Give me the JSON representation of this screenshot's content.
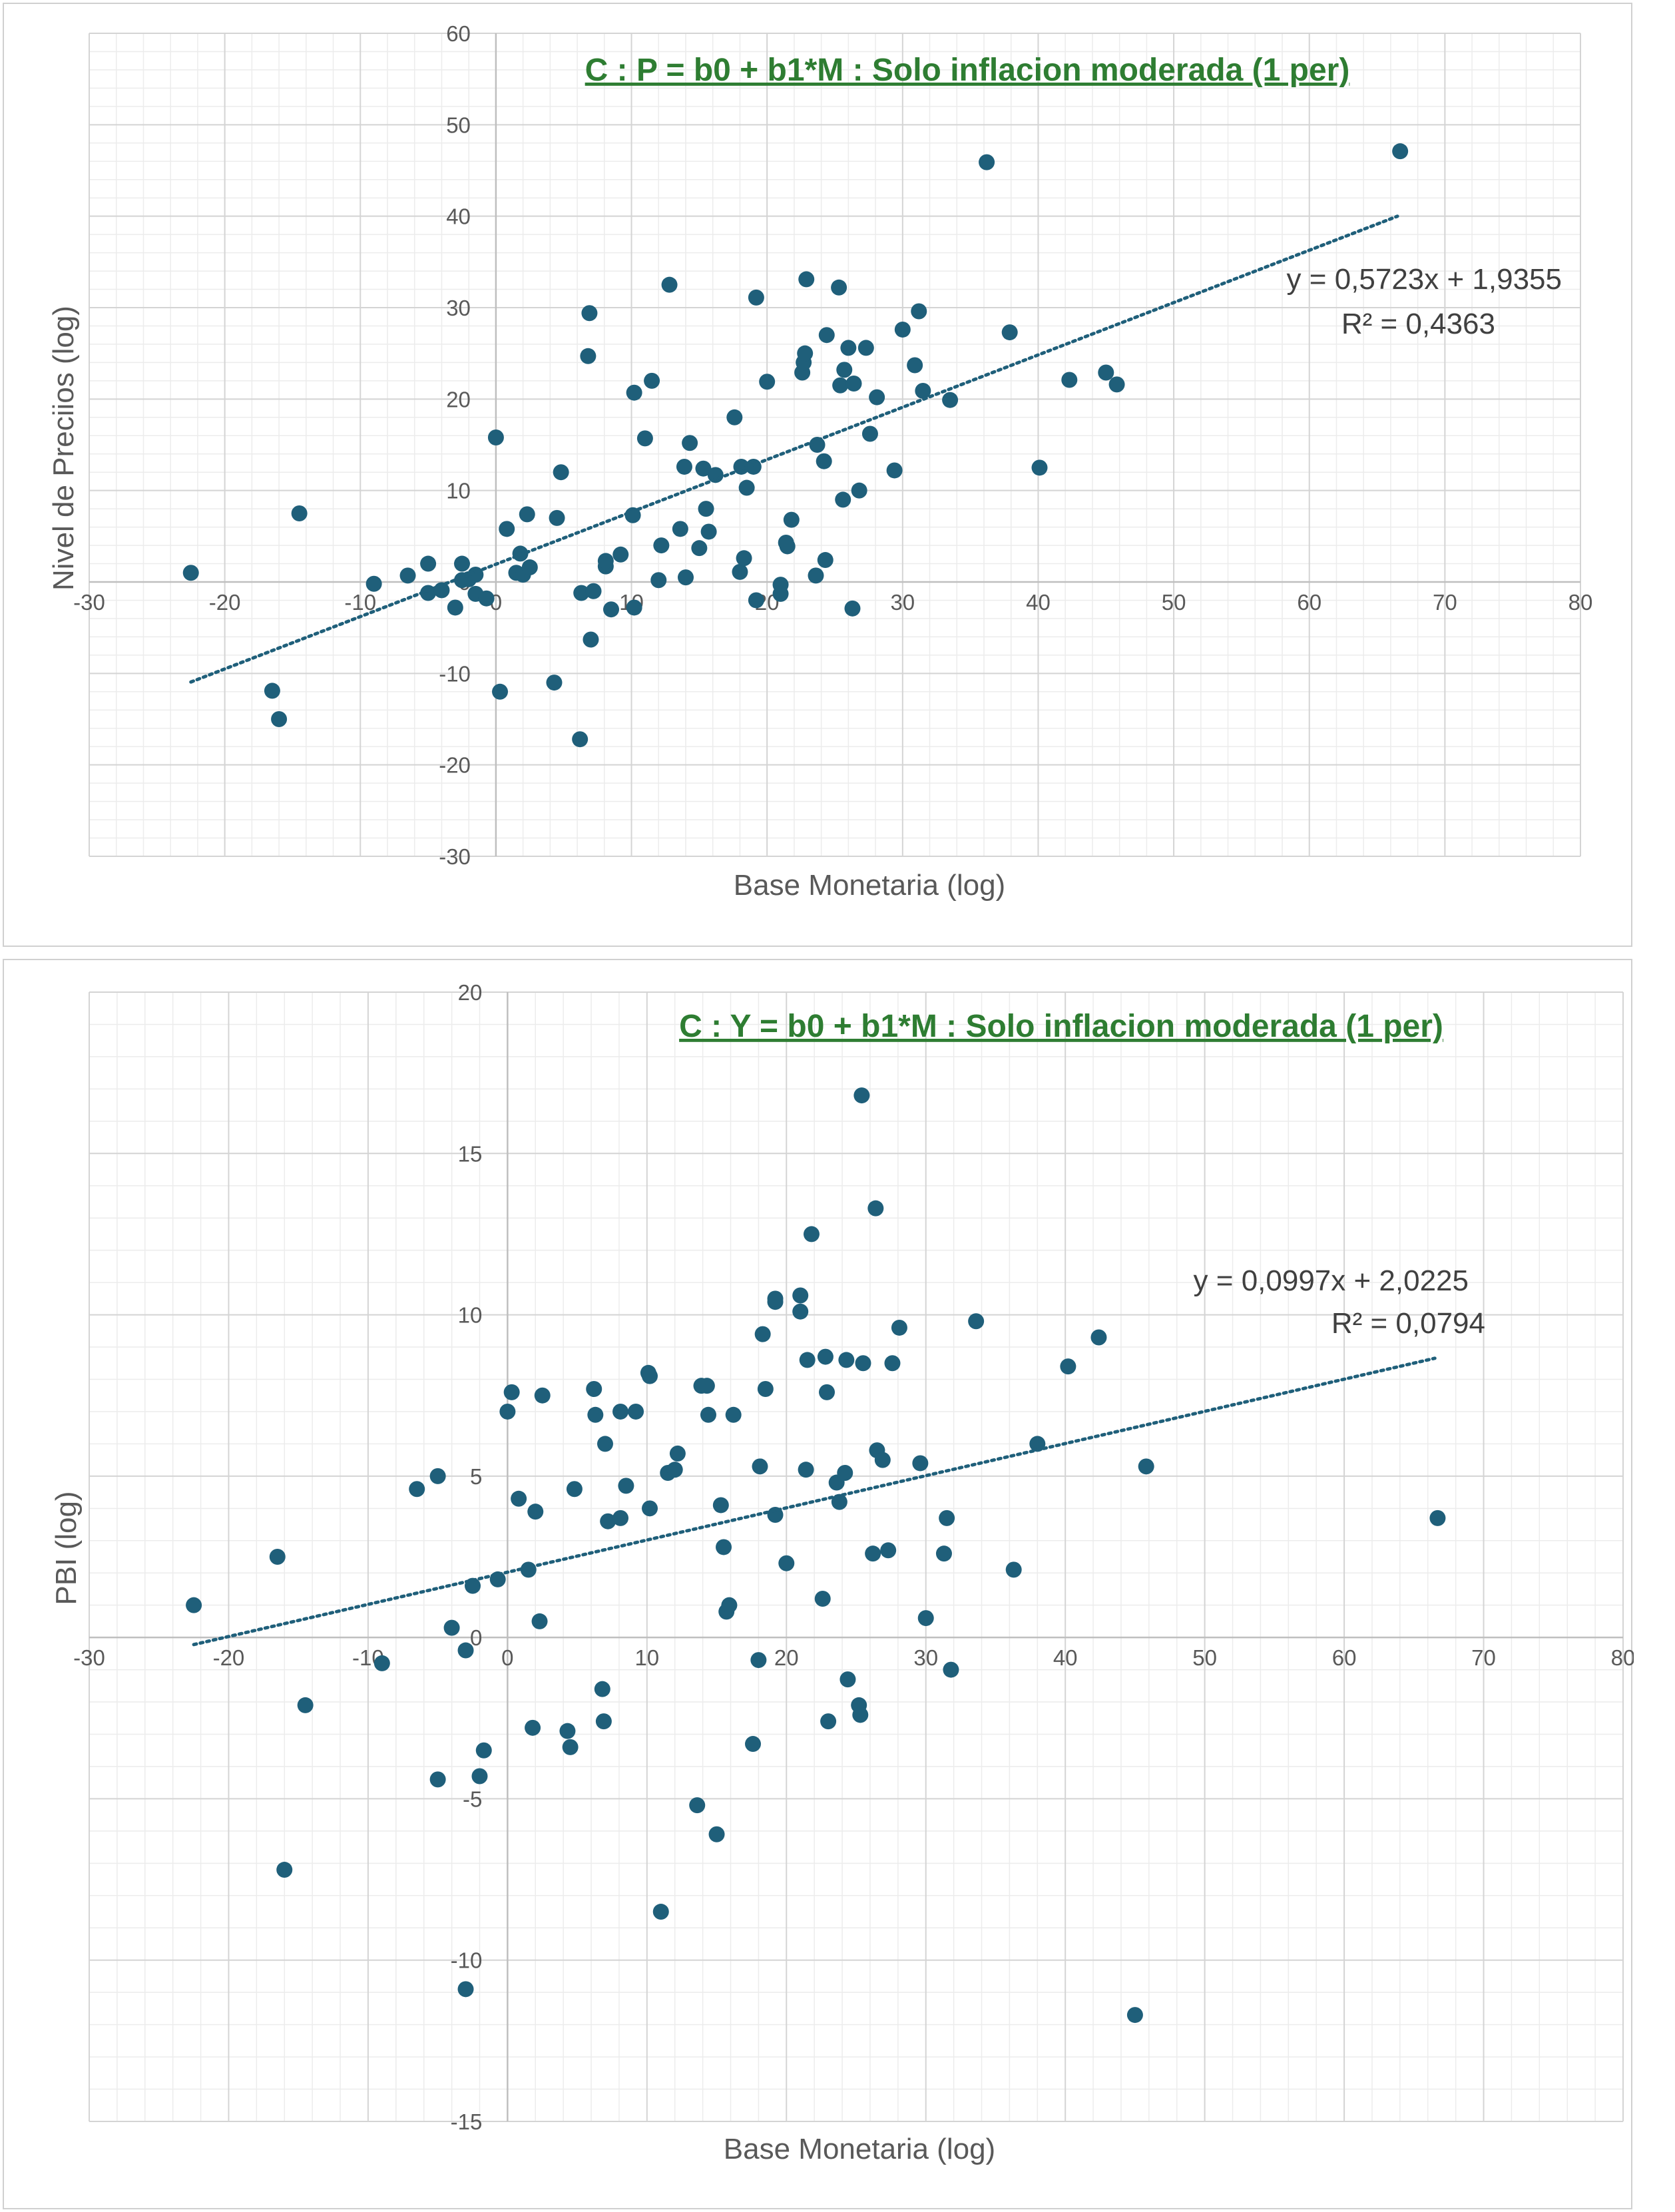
{
  "chart_data": [
    {
      "type": "scatter",
      "title": "C : P = b0 + b1*M : Solo inflacion moderada (1 per)",
      "xlabel": "Base Monetaria (log)",
      "ylabel": "Nivel de Preciios (log)",
      "xlim": [
        -30,
        80
      ],
      "ylim": [
        -30,
        60
      ],
      "xticks": [
        -30,
        -20,
        -10,
        0,
        10,
        20,
        30,
        40,
        50,
        60,
        70,
        80
      ],
      "yticks": [
        -30,
        -20,
        -10,
        0,
        10,
        20,
        30,
        40,
        50,
        60
      ],
      "grid": true,
      "trendline": {
        "type": "linear",
        "slope": 0.5723,
        "intercept": 1.9355,
        "x_range": [
          -22.5,
          66.5
        ]
      },
      "equation": "y = 0,5723x + 1,9355",
      "r2_label": "R² = 0,4363",
      "marker_color": "#1f5f7a",
      "trend_color": "#1f5f7a",
      "title_color": "#2e7d32",
      "points": [
        [
          -22.5,
          1.0
        ],
        [
          -16.5,
          -11.9
        ],
        [
          -16.0,
          -15.0
        ],
        [
          -14.5,
          7.5
        ],
        [
          -9.0,
          -0.2
        ],
        [
          -6.5,
          0.7
        ],
        [
          -5.0,
          2.0
        ],
        [
          -5.0,
          -1.2
        ],
        [
          -4.0,
          -0.9
        ],
        [
          -3.0,
          -2.8
        ],
        [
          -2.5,
          0.2
        ],
        [
          -2.5,
          2.0
        ],
        [
          -2.0,
          0.3
        ],
        [
          -1.5,
          0.8
        ],
        [
          -1.5,
          -1.3
        ],
        [
          -0.7,
          -1.8
        ],
        [
          0.0,
          15.8
        ],
        [
          0.3,
          -12.0
        ],
        [
          0.8,
          5.8
        ],
        [
          1.5,
          1.0
        ],
        [
          1.8,
          3.1
        ],
        [
          2.0,
          0.8
        ],
        [
          2.3,
          7.4
        ],
        [
          2.5,
          1.6
        ],
        [
          4.3,
          -11.0
        ],
        [
          4.5,
          7.0
        ],
        [
          4.8,
          12.0
        ],
        [
          6.2,
          -17.2
        ],
        [
          6.3,
          -1.2
        ],
        [
          6.8,
          24.7
        ],
        [
          6.9,
          29.4
        ],
        [
          7.0,
          -6.3
        ],
        [
          7.2,
          -1.0
        ],
        [
          8.1,
          1.7
        ],
        [
          8.1,
          2.3
        ],
        [
          8.5,
          -3.0
        ],
        [
          9.2,
          3.0
        ],
        [
          10.1,
          7.3
        ],
        [
          10.2,
          20.7
        ],
        [
          10.2,
          -2.8
        ],
        [
          11.0,
          15.7
        ],
        [
          11.5,
          22.0
        ],
        [
          12.0,
          0.2
        ],
        [
          12.2,
          4.0
        ],
        [
          12.8,
          32.5
        ],
        [
          13.6,
          5.8
        ],
        [
          13.9,
          12.6
        ],
        [
          14.0,
          0.5
        ],
        [
          14.3,
          15.2
        ],
        [
          15.0,
          3.7
        ],
        [
          15.3,
          12.4
        ],
        [
          15.5,
          8.0
        ],
        [
          15.7,
          5.5
        ],
        [
          16.2,
          11.7
        ],
        [
          17.6,
          18.0
        ],
        [
          18.0,
          1.1
        ],
        [
          18.1,
          12.6
        ],
        [
          18.3,
          2.6
        ],
        [
          18.5,
          10.3
        ],
        [
          19.0,
          12.6
        ],
        [
          19.2,
          -2.0
        ],
        [
          19.2,
          31.1
        ],
        [
          20.0,
          21.9
        ],
        [
          21.0,
          -0.3
        ],
        [
          21.0,
          -1.3
        ],
        [
          21.4,
          4.3
        ],
        [
          21.5,
          3.9
        ],
        [
          21.8,
          6.8
        ],
        [
          22.6,
          22.9
        ],
        [
          22.7,
          24.0
        ],
        [
          22.8,
          25.0
        ],
        [
          22.9,
          33.1
        ],
        [
          23.6,
          0.7
        ],
        [
          23.7,
          15.0
        ],
        [
          24.2,
          13.2
        ],
        [
          24.3,
          2.4
        ],
        [
          24.4,
          27.0
        ],
        [
          25.3,
          32.2
        ],
        [
          25.4,
          21.5
        ],
        [
          25.6,
          9.0
        ],
        [
          25.7,
          23.2
        ],
        [
          26.0,
          25.6
        ],
        [
          26.3,
          -2.9
        ],
        [
          26.4,
          21.7
        ],
        [
          26.8,
          10.0
        ],
        [
          27.3,
          25.6
        ],
        [
          27.6,
          16.2
        ],
        [
          28.1,
          20.2
        ],
        [
          29.4,
          12.2
        ],
        [
          30.0,
          27.6
        ],
        [
          30.9,
          23.7
        ],
        [
          31.2,
          29.6
        ],
        [
          31.5,
          20.9
        ],
        [
          33.5,
          19.9
        ],
        [
          36.2,
          45.9
        ],
        [
          37.9,
          27.3
        ],
        [
          40.1,
          12.5
        ],
        [
          42.3,
          22.1
        ],
        [
          45.0,
          22.9
        ],
        [
          45.8,
          21.6
        ],
        [
          66.7,
          47.1
        ]
      ]
    },
    {
      "type": "scatter",
      "title": "C : Y = b0 + b1*M : Solo inflacion moderada (1 per)",
      "xlabel": "Base Monetaria (log)",
      "ylabel": "PBI  (log)",
      "xlim": [
        -30,
        80
      ],
      "ylim": [
        -15,
        20
      ],
      "xticks": [
        -30,
        -20,
        -10,
        0,
        10,
        20,
        30,
        40,
        50,
        60,
        70,
        80
      ],
      "yticks": [
        -15,
        -10,
        -5,
        0,
        5,
        10,
        15,
        20
      ],
      "grid": true,
      "trendline": {
        "type": "linear",
        "slope": 0.0997,
        "intercept": 2.0225,
        "x_range": [
          -22.5,
          66.5
        ]
      },
      "equation": "y = 0,0997x + 2,0225",
      "r2_label": "R² = 0,0794",
      "marker_color": "#1f5f7a",
      "trend_color": "#1f5f7a",
      "title_color": "#2e7d32",
      "points": [
        [
          -22.5,
          1.0
        ],
        [
          -16.5,
          2.5
        ],
        [
          -16.0,
          -7.2
        ],
        [
          -14.5,
          -2.1
        ],
        [
          -9.0,
          -0.8
        ],
        [
          -6.5,
          4.6
        ],
        [
          -5.0,
          5.0
        ],
        [
          -5.0,
          -4.4
        ],
        [
          -4.0,
          0.3
        ],
        [
          -3.0,
          -0.4
        ],
        [
          -3.0,
          -10.9
        ],
        [
          -2.5,
          1.6
        ],
        [
          -2.0,
          -4.3
        ],
        [
          -1.7,
          -3.5
        ],
        [
          -0.7,
          1.8
        ],
        [
          0.0,
          7.0
        ],
        [
          0.3,
          7.6
        ],
        [
          0.8,
          4.3
        ],
        [
          1.5,
          2.1
        ],
        [
          1.8,
          -2.8
        ],
        [
          2.0,
          3.9
        ],
        [
          2.3,
          0.5
        ],
        [
          2.5,
          7.5
        ],
        [
          4.3,
          -2.9
        ],
        [
          4.5,
          -3.4
        ],
        [
          4.8,
          4.6
        ],
        [
          6.2,
          7.7
        ],
        [
          6.3,
          6.9
        ],
        [
          6.8,
          -1.6
        ],
        [
          6.9,
          -2.6
        ],
        [
          7.0,
          6.0
        ],
        [
          7.2,
          3.6
        ],
        [
          8.1,
          7.0
        ],
        [
          8.1,
          3.7
        ],
        [
          8.5,
          4.7
        ],
        [
          9.2,
          7.0
        ],
        [
          10.1,
          8.2
        ],
        [
          10.2,
          8.1
        ],
        [
          10.2,
          4.0
        ],
        [
          11.0,
          -8.5
        ],
        [
          11.5,
          5.1
        ],
        [
          12.0,
          5.2
        ],
        [
          12.2,
          5.7
        ],
        [
          13.6,
          -5.2
        ],
        [
          13.9,
          7.8
        ],
        [
          14.3,
          7.8
        ],
        [
          14.4,
          6.9
        ],
        [
          15.0,
          -6.1
        ],
        [
          15.3,
          4.1
        ],
        [
          15.5,
          2.8
        ],
        [
          15.7,
          0.8
        ],
        [
          15.9,
          1.0
        ],
        [
          16.2,
          6.9
        ],
        [
          17.6,
          -3.3
        ],
        [
          18.0,
          -0.7
        ],
        [
          18.1,
          5.3
        ],
        [
          18.3,
          9.4
        ],
        [
          18.5,
          7.7
        ],
        [
          19.2,
          10.4
        ],
        [
          19.2,
          10.5
        ],
        [
          19.2,
          3.8
        ],
        [
          20.0,
          2.3
        ],
        [
          21.0,
          10.1
        ],
        [
          21.0,
          10.6
        ],
        [
          21.4,
          5.2
        ],
        [
          21.5,
          8.6
        ],
        [
          21.8,
          12.5
        ],
        [
          22.6,
          1.2
        ],
        [
          22.8,
          8.7
        ],
        [
          22.9,
          7.6
        ],
        [
          23.0,
          -2.6
        ],
        [
          23.6,
          4.8
        ],
        [
          23.8,
          4.2
        ],
        [
          24.2,
          5.1
        ],
        [
          24.3,
          8.6
        ],
        [
          24.4,
          -1.3
        ],
        [
          25.2,
          -2.1
        ],
        [
          25.3,
          -2.4
        ],
        [
          25.4,
          16.8
        ],
        [
          25.5,
          8.5
        ],
        [
          26.2,
          2.6
        ],
        [
          26.4,
          13.3
        ],
        [
          26.5,
          5.8
        ],
        [
          26.9,
          5.5
        ],
        [
          27.3,
          2.7
        ],
        [
          27.6,
          8.5
        ],
        [
          28.1,
          9.6
        ],
        [
          29.6,
          5.4
        ],
        [
          30.0,
          0.6
        ],
        [
          31.3,
          2.6
        ],
        [
          31.5,
          3.7
        ],
        [
          31.8,
          -1.0
        ],
        [
          33.6,
          9.8
        ],
        [
          36.3,
          2.1
        ],
        [
          38.0,
          6.0
        ],
        [
          40.2,
          8.4
        ],
        [
          42.4,
          9.3
        ],
        [
          45.0,
          -11.7
        ],
        [
          45.8,
          5.3
        ],
        [
          66.7,
          3.7
        ]
      ]
    }
  ]
}
